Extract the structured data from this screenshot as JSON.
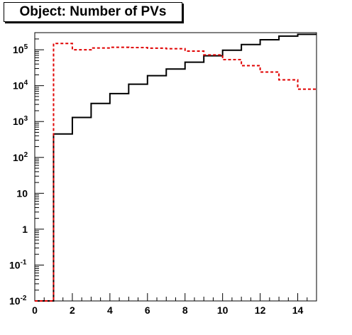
{
  "title": "Object: Number of PVs",
  "chart_data": {
    "type": "line",
    "title": "Object: Number of PVs",
    "xlabel": "",
    "ylabel": "",
    "xlim": [
      0,
      15
    ],
    "ylim": [
      0.01,
      300000
    ],
    "y_scale": "log",
    "grid": false,
    "legend": "none",
    "x_ticks": [
      "0",
      "2",
      "4",
      "6",
      "8",
      "10",
      "12",
      "14"
    ],
    "y_ticks": [
      {
        "value": 0.01,
        "base": "10",
        "exp": "-2"
      },
      {
        "value": 0.1,
        "base": "10",
        "exp": "-1"
      },
      {
        "value": 1,
        "base": "1",
        "exp": ""
      },
      {
        "value": 10,
        "base": "10",
        "exp": ""
      },
      {
        "value": 100,
        "base": "10",
        "exp": "2"
      },
      {
        "value": 1000,
        "base": "10",
        "exp": "3"
      },
      {
        "value": 10000,
        "base": "10",
        "exp": "4"
      },
      {
        "value": 100000,
        "base": "10",
        "exp": "5"
      }
    ],
    "bin_edges": [
      0,
      1,
      2,
      3,
      4,
      5,
      6,
      7,
      8,
      9,
      10,
      11,
      12,
      13,
      14,
      15
    ],
    "series": [
      {
        "style": "solid",
        "color": "#000000",
        "values": [
          0,
          450,
          1300,
          3200,
          6000,
          11000,
          19000,
          29000,
          45000,
          68000,
          97000,
          140000,
          190000,
          240000,
          270000
        ]
      },
      {
        "style": "dashed",
        "color": "#e00000",
        "values": [
          0,
          150000,
          100000,
          112000,
          117000,
          115000,
          111000,
          107000,
          92000,
          72000,
          53000,
          36000,
          24000,
          14500,
          8000
        ]
      }
    ]
  }
}
